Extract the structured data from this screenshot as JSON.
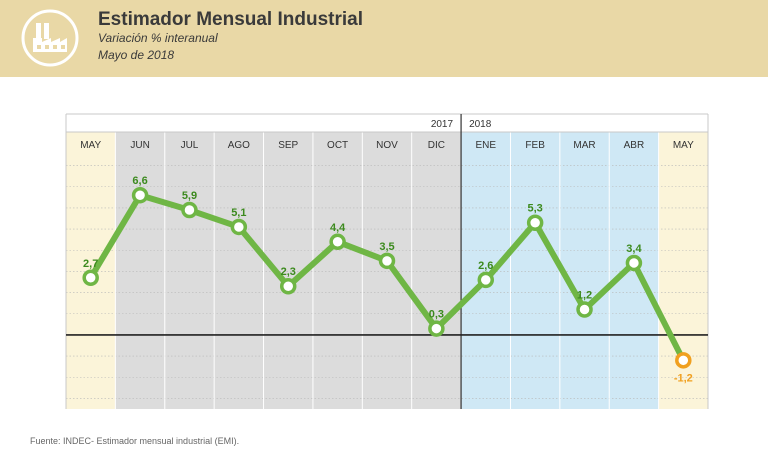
{
  "header": {
    "title": "Estimador Mensual Industrial",
    "subtitle": "Variación % interanual",
    "date": "Mayo de 2018",
    "icon": "factory-icon"
  },
  "footer": {
    "source": "Fuente: INDEC- Estimador mensual industrial (EMI)."
  },
  "colors": {
    "header_bg": "#e9d8a6",
    "line": "#6fb645",
    "label_green": "#3c8a1e",
    "highlight": "#f0a020",
    "gray_band": "#dcdcdc",
    "blue_band": "#cfe8f5",
    "cream_band": "#fbf4d9"
  },
  "chart_data": {
    "type": "line",
    "title": "Estimador Mensual Industrial",
    "subtitle": "Variación % interanual",
    "categories": [
      "MAY",
      "JUN",
      "JUL",
      "AGO",
      "SEP",
      "OCT",
      "NOV",
      "DIC",
      "ENE",
      "FEB",
      "MAR",
      "ABR",
      "MAY"
    ],
    "values": [
      2.7,
      6.6,
      5.9,
      5.1,
      2.3,
      4.4,
      3.5,
      0.3,
      2.6,
      5.3,
      1.2,
      3.4,
      -1.2
    ],
    "value_labels": [
      "2,7",
      "6,6",
      "5,9",
      "5,1",
      "2,3",
      "4,4",
      "3,5",
      "0,3",
      "2,6",
      "5,3",
      "1,2",
      "3,4",
      "-1,2"
    ],
    "year_labels": [
      "2017",
      "2018"
    ],
    "ylim": [
      -3.5,
      8.5
    ],
    "grid": true,
    "xlabel": "",
    "ylabel": ""
  }
}
